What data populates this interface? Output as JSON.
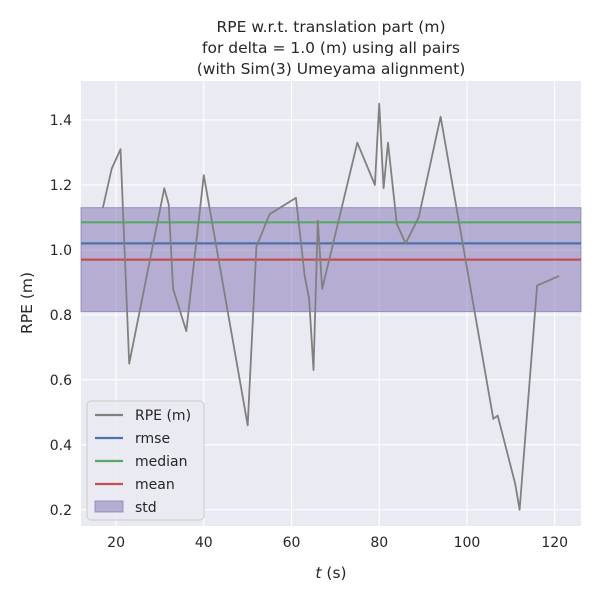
{
  "chart_data": {
    "type": "line",
    "title_lines": [
      "RPE w.r.t. translation part (m)",
      "for delta = 1.0 (m) using all pairs",
      "(with Sim(3) Umeyama alignment)"
    ],
    "xlabel_italic": "t",
    "xlabel_rest": " (s)",
    "ylabel": "RPE (m)",
    "xlim": [
      12,
      126
    ],
    "ylim": [
      0.15,
      1.52
    ],
    "xticks": [
      20,
      40,
      60,
      80,
      100,
      120
    ],
    "xtick_labels": [
      "20",
      "40",
      "60",
      "80",
      "100",
      "120"
    ],
    "yticks": [
      0.2,
      0.4,
      0.6,
      0.8,
      1.0,
      1.2,
      1.4
    ],
    "ytick_labels": [
      "0.2",
      "0.4",
      "0.6",
      "0.8",
      "1.0",
      "1.2",
      "1.4"
    ],
    "grid": true,
    "legend_position": "lower-left",
    "series": [
      {
        "name": "RPE (m)",
        "color": "#808080",
        "x": [
          17,
          19,
          21,
          23,
          31,
          32,
          33,
          36,
          40,
          50,
          52,
          55,
          61,
          63,
          64,
          65,
          66,
          67,
          75,
          79,
          80,
          81,
          82,
          84,
          86,
          89,
          94,
          106,
          107,
          111,
          112,
          116,
          121
        ],
        "y": [
          1.13,
          1.25,
          1.31,
          0.65,
          1.19,
          1.14,
          0.88,
          0.75,
          1.23,
          0.46,
          1.01,
          1.11,
          1.16,
          0.92,
          0.85,
          0.63,
          1.09,
          0.88,
          1.33,
          1.2,
          1.45,
          1.19,
          1.33,
          1.08,
          1.02,
          1.1,
          1.41,
          0.48,
          0.49,
          0.28,
          0.2,
          0.89,
          0.92
        ]
      }
    ],
    "stats": {
      "rmse": {
        "name": "rmse",
        "value": 1.02,
        "color": "#4c72b0"
      },
      "median": {
        "name": "median",
        "value": 1.085,
        "color": "#55a868"
      },
      "mean": {
        "name": "mean",
        "value": 0.97,
        "color": "#c44e52"
      },
      "std": {
        "name": "std",
        "lower": 0.81,
        "upper": 1.13,
        "color": "#8172b2"
      }
    },
    "legend": [
      "RPE (m)",
      "rmse",
      "median",
      "mean",
      "std"
    ],
    "style": {
      "plot_bg": "#eaeaf2",
      "grid": "#ffffff",
      "text": "#262626"
    }
  }
}
